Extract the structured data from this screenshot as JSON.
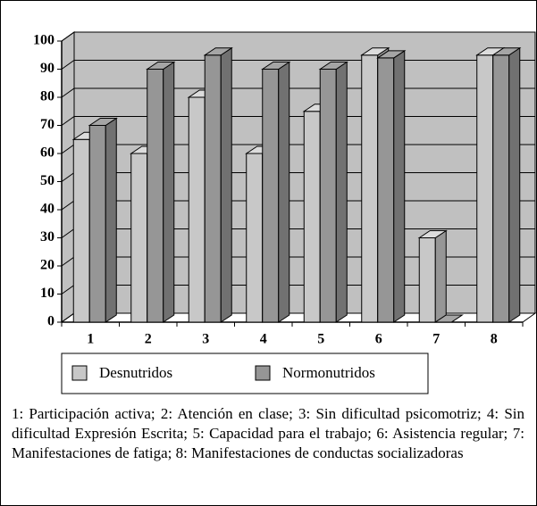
{
  "chart_data": {
    "type": "bar3d",
    "categories": [
      "1",
      "2",
      "3",
      "4",
      "5",
      "6",
      "7",
      "8"
    ],
    "series": [
      {
        "name": "Desnutridos",
        "color": "#c8c8c8",
        "values": [
          65,
          60,
          80,
          60,
          75,
          95,
          30,
          95
        ]
      },
      {
        "name": "Normonutridos",
        "color": "#969696",
        "values": [
          70,
          90,
          95,
          90,
          90,
          94,
          0,
          95
        ]
      }
    ],
    "ylim": [
      0,
      100
    ],
    "yticks": [
      0,
      10,
      20,
      30,
      40,
      50,
      60,
      70,
      80,
      90,
      100
    ],
    "grid": true,
    "legend": "bottom",
    "note": "1: Participación activa; 2: Atención en clase; 3: Sin dificultad psicomotriz; 4: Sin dificultad Expresión Escrita; 5: Capacidad para el trabajo; 6: Asistencia regular; 7: Manifestaciones de fatiga; 8: Manifestaciones de conductas socializadoras"
  }
}
